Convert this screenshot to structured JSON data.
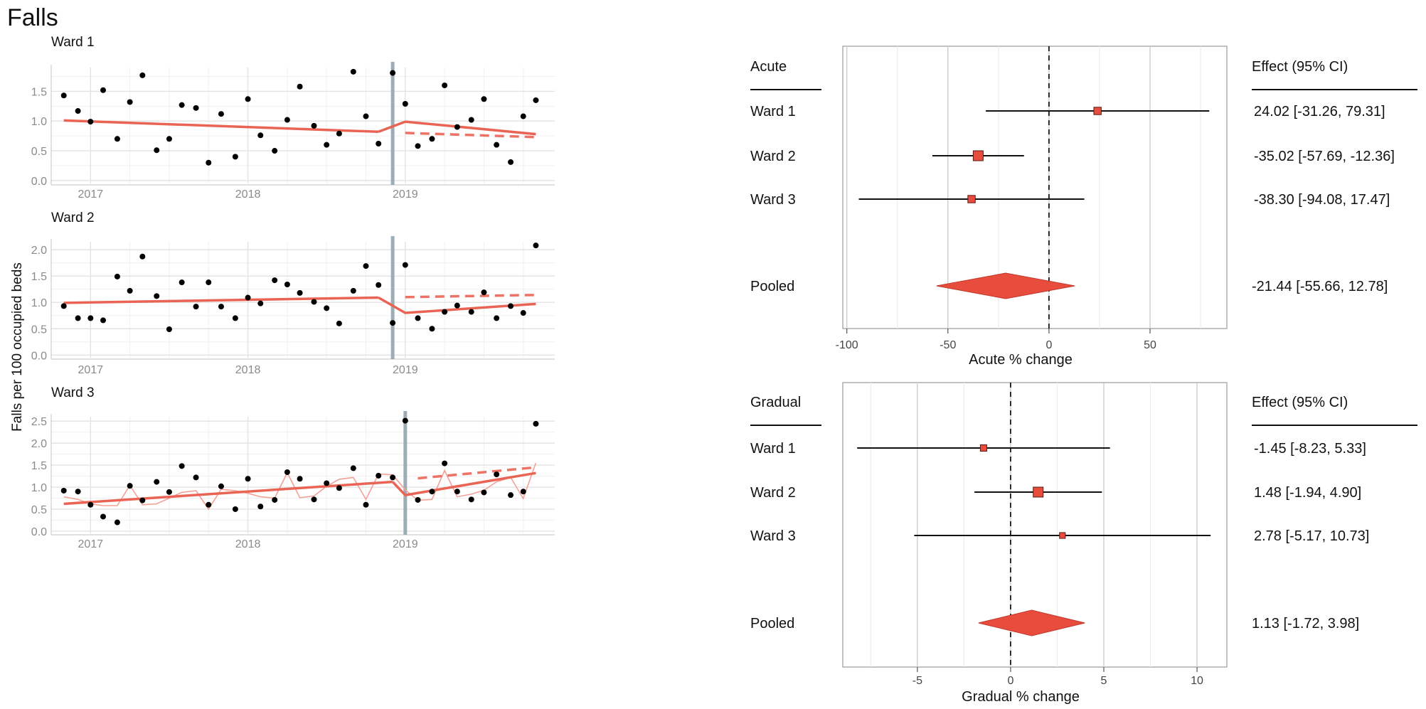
{
  "title": "Falls",
  "colors": {
    "trend": "#ea6455",
    "marker": "#e74c3c",
    "intervention": "#9eadb5",
    "grid": "#e3e3e3",
    "axis_text": "#8a8a8a"
  },
  "chart_data": [
    {
      "type": "scatter",
      "title": "Ward 1",
      "ylabel": "Falls per 100 occupied beds",
      "xlim": [
        2016.75,
        2019.95
      ],
      "ylim": [
        -0.05,
        1.9
      ],
      "x_ticks": [
        2017,
        2018,
        2019
      ],
      "x_tick_labels": [
        "2017",
        "2018",
        "2019"
      ],
      "y_ticks": [
        0.0,
        0.5,
        1.0,
        1.5
      ],
      "y_tick_labels": [
        "0.0",
        "0.5",
        "1.0",
        "1.5"
      ],
      "intervention_x": 2018.92,
      "points": [
        [
          2016.83,
          1.43
        ],
        [
          2016.92,
          1.17
        ],
        [
          2017.0,
          0.99
        ],
        [
          2017.08,
          1.52
        ],
        [
          2017.17,
          0.7
        ],
        [
          2017.25,
          1.32
        ],
        [
          2017.33,
          1.77
        ],
        [
          2017.42,
          0.51
        ],
        [
          2017.5,
          0.7
        ],
        [
          2017.58,
          1.27
        ],
        [
          2017.67,
          1.22
        ],
        [
          2017.75,
          0.3
        ],
        [
          2017.83,
          1.12
        ],
        [
          2017.92,
          0.4
        ],
        [
          2018.0,
          1.37
        ],
        [
          2018.08,
          0.76
        ],
        [
          2018.17,
          0.5
        ],
        [
          2018.25,
          1.02
        ],
        [
          2018.33,
          1.58
        ],
        [
          2018.42,
          0.92
        ],
        [
          2018.5,
          0.6
        ],
        [
          2018.58,
          0.79
        ],
        [
          2018.67,
          1.83
        ],
        [
          2018.75,
          1.08
        ],
        [
          2018.83,
          0.62
        ],
        [
          2018.92,
          1.81
        ],
        [
          2019.0,
          1.29
        ],
        [
          2019.08,
          0.58
        ],
        [
          2019.17,
          0.7
        ],
        [
          2019.25,
          1.6
        ],
        [
          2019.33,
          0.9
        ],
        [
          2019.42,
          1.02
        ],
        [
          2019.5,
          1.37
        ],
        [
          2019.58,
          0.6
        ],
        [
          2019.67,
          0.31
        ],
        [
          2019.75,
          1.08
        ],
        [
          2019.83,
          1.35
        ]
      ],
      "fitted_pre": [
        [
          2016.83,
          1.01
        ],
        [
          2018.83,
          0.82
        ]
      ],
      "fitted_post": [
        [
          2018.83,
          0.82
        ],
        [
          2019.0,
          0.99
        ],
        [
          2019.83,
          0.78
        ]
      ],
      "counterfactual": [
        [
          2019.0,
          0.8
        ],
        [
          2019.83,
          0.73
        ]
      ]
    },
    {
      "type": "scatter",
      "title": "Ward 2",
      "xlim": [
        2016.75,
        2019.95
      ],
      "ylim": [
        -0.05,
        2.15
      ],
      "x_ticks": [
        2017,
        2018,
        2019
      ],
      "x_tick_labels": [
        "2017",
        "2018",
        "2019"
      ],
      "y_ticks": [
        0.0,
        0.5,
        1.0,
        1.5,
        2.0
      ],
      "y_tick_labels": [
        "0.0",
        "0.5",
        "1.0",
        "1.5",
        "2.0"
      ],
      "intervention_x": 2018.92,
      "points": [
        [
          2016.83,
          0.93
        ],
        [
          2016.92,
          0.7
        ],
        [
          2017.0,
          0.7
        ],
        [
          2017.08,
          0.66
        ],
        [
          2017.17,
          1.49
        ],
        [
          2017.25,
          1.22
        ],
        [
          2017.33,
          1.87
        ],
        [
          2017.42,
          1.12
        ],
        [
          2017.5,
          0.49
        ],
        [
          2017.58,
          1.38
        ],
        [
          2017.67,
          0.92
        ],
        [
          2017.75,
          1.38
        ],
        [
          2017.83,
          0.92
        ],
        [
          2017.92,
          0.7
        ],
        [
          2018.0,
          1.09
        ],
        [
          2018.08,
          0.98
        ],
        [
          2018.17,
          1.42
        ],
        [
          2018.25,
          1.34
        ],
        [
          2018.33,
          1.18
        ],
        [
          2018.42,
          1.01
        ],
        [
          2018.5,
          0.89
        ],
        [
          2018.58,
          0.6
        ],
        [
          2018.67,
          1.22
        ],
        [
          2018.75,
          1.69
        ],
        [
          2018.83,
          1.33
        ],
        [
          2018.92,
          0.61
        ],
        [
          2019.0,
          1.71
        ],
        [
          2019.08,
          0.7
        ],
        [
          2019.17,
          0.5
        ],
        [
          2019.25,
          0.82
        ],
        [
          2019.33,
          0.94
        ],
        [
          2019.42,
          0.82
        ],
        [
          2019.5,
          1.19
        ],
        [
          2019.58,
          0.7
        ],
        [
          2019.67,
          0.93
        ],
        [
          2019.75,
          0.8
        ],
        [
          2019.83,
          2.08
        ]
      ],
      "fitted_pre": [
        [
          2016.83,
          0.99
        ],
        [
          2018.83,
          1.09
        ]
      ],
      "fitted_post": [
        [
          2018.83,
          1.09
        ],
        [
          2019.0,
          0.8
        ],
        [
          2019.83,
          0.97
        ]
      ],
      "counterfactual": [
        [
          2019.0,
          1.1
        ],
        [
          2019.83,
          1.14
        ]
      ]
    },
    {
      "type": "scatter",
      "title": "Ward 3",
      "xlim": [
        2016.75,
        2019.95
      ],
      "ylim": [
        -0.05,
        2.6
      ],
      "x_ticks": [
        2017,
        2018,
        2019
      ],
      "x_tick_labels": [
        "2017",
        "2018",
        "2019"
      ],
      "y_ticks": [
        0.0,
        0.5,
        1.0,
        1.5,
        2.0,
        2.5
      ],
      "y_tick_labels": [
        "0.0",
        "0.5",
        "1.0",
        "1.5",
        "2.0",
        "2.5"
      ],
      "intervention_x": 2019.0,
      "points": [
        [
          2016.83,
          0.92
        ],
        [
          2016.92,
          0.9
        ],
        [
          2017.0,
          0.6
        ],
        [
          2017.08,
          0.33
        ],
        [
          2017.17,
          0.2
        ],
        [
          2017.25,
          1.03
        ],
        [
          2017.33,
          0.7
        ],
        [
          2017.42,
          1.12
        ],
        [
          2017.5,
          0.89
        ],
        [
          2017.58,
          1.48
        ],
        [
          2017.67,
          1.22
        ],
        [
          2017.75,
          0.6
        ],
        [
          2017.83,
          1.02
        ],
        [
          2017.92,
          0.5
        ],
        [
          2018.0,
          1.19
        ],
        [
          2018.08,
          0.56
        ],
        [
          2018.17,
          0.71
        ],
        [
          2018.25,
          1.34
        ],
        [
          2018.33,
          1.19
        ],
        [
          2018.42,
          0.72
        ],
        [
          2018.5,
          1.09
        ],
        [
          2018.58,
          0.98
        ],
        [
          2018.67,
          1.43
        ],
        [
          2018.75,
          0.6
        ],
        [
          2018.83,
          1.26
        ],
        [
          2018.92,
          1.22
        ],
        [
          2019.0,
          2.51
        ],
        [
          2019.08,
          0.71
        ],
        [
          2019.17,
          0.9
        ],
        [
          2019.25,
          1.54
        ],
        [
          2019.33,
          0.9
        ],
        [
          2019.42,
          0.72
        ],
        [
          2019.5,
          0.88
        ],
        [
          2019.58,
          1.29
        ],
        [
          2019.67,
          0.82
        ],
        [
          2019.75,
          0.9
        ],
        [
          2019.83,
          2.44
        ]
      ],
      "fitted_pre": [
        [
          2016.83,
          0.62
        ],
        [
          2018.92,
          1.12
        ]
      ],
      "fitted_post": [
        [
          2018.92,
          1.12
        ],
        [
          2019.0,
          0.82
        ],
        [
          2019.83,
          1.32
        ]
      ],
      "counterfactual": [
        [
          2019.08,
          1.2
        ],
        [
          2019.83,
          1.45
        ]
      ],
      "smoothed": [
        [
          2016.83,
          0.78
        ],
        [
          2016.92,
          0.72
        ],
        [
          2017.0,
          0.62
        ],
        [
          2017.08,
          0.58
        ],
        [
          2017.17,
          0.58
        ],
        [
          2017.25,
          1.04
        ],
        [
          2017.33,
          0.6
        ],
        [
          2017.42,
          0.62
        ],
        [
          2017.5,
          0.75
        ],
        [
          2017.58,
          0.88
        ],
        [
          2017.67,
          0.92
        ],
        [
          2017.75,
          0.5
        ],
        [
          2017.83,
          0.95
        ],
        [
          2017.92,
          0.92
        ],
        [
          2018.0,
          0.86
        ],
        [
          2018.08,
          0.78
        ],
        [
          2018.17,
          0.75
        ],
        [
          2018.25,
          1.33
        ],
        [
          2018.33,
          0.76
        ],
        [
          2018.42,
          0.8
        ],
        [
          2018.5,
          1.02
        ],
        [
          2018.58,
          1.18
        ],
        [
          2018.67,
          1.22
        ],
        [
          2018.75,
          0.72
        ],
        [
          2018.83,
          1.3
        ],
        [
          2018.92,
          1.28
        ],
        [
          2019.0,
          0.94
        ],
        [
          2019.08,
          0.7
        ],
        [
          2019.17,
          0.72
        ],
        [
          2019.25,
          1.38
        ],
        [
          2019.33,
          0.78
        ],
        [
          2019.42,
          0.84
        ],
        [
          2019.5,
          0.93
        ],
        [
          2019.58,
          1.12
        ],
        [
          2019.67,
          1.22
        ],
        [
          2019.75,
          0.74
        ],
        [
          2019.83,
          1.55
        ]
      ]
    },
    {
      "type": "forest",
      "header_label": "Acute",
      "effect_header": "Effect (95% CI)",
      "xlabel": "Acute % change",
      "xlim": [
        -102,
        88
      ],
      "x_ticks": [
        -100,
        -50,
        0,
        50
      ],
      "x_tick_labels": [
        "-100",
        "-50",
        "0",
        "50"
      ],
      "minor_ticks": [
        -75,
        -25,
        25,
        75
      ],
      "rows": [
        {
          "label": "Ward 1",
          "estimate": 24.02,
          "lower": -31.26,
          "upper": 79.31,
          "weight": 0.6,
          "effect_text": "24.02 [-31.26,  79.31]"
        },
        {
          "label": "Ward 2",
          "estimate": -35.02,
          "lower": -57.69,
          "upper": -12.36,
          "weight": 1.0,
          "effect_text": "-35.02 [-57.69, -12.36]"
        },
        {
          "label": "Ward 3",
          "estimate": -38.3,
          "lower": -94.08,
          "upper": 17.47,
          "weight": 0.6,
          "effect_text": "-38.30 [-94.08,  17.47]"
        }
      ],
      "pooled": {
        "label": "Pooled",
        "estimate": -21.44,
        "lower": -55.66,
        "upper": 12.78,
        "effect_text": "-21.44 [-55.66,  12.78]"
      }
    },
    {
      "type": "forest",
      "header_label": "Gradual",
      "effect_header": "Effect (95% CI)",
      "xlabel": "Gradual % change",
      "xlim": [
        -9.0,
        11.6
      ],
      "x_ticks": [
        -5,
        0,
        5,
        10
      ],
      "x_tick_labels": [
        "-5",
        "0",
        "5",
        "10"
      ],
      "minor_ticks": [
        -7.5,
        -2.5,
        2.5,
        7.5
      ],
      "rows": [
        {
          "label": "Ward 1",
          "estimate": -1.45,
          "lower": -8.23,
          "upper": 5.33,
          "weight": 0.45,
          "effect_text": "-1.45 [-8.23,  5.33]"
        },
        {
          "label": "Ward 2",
          "estimate": 1.48,
          "lower": -1.94,
          "upper": 4.9,
          "weight": 1.0,
          "effect_text": "1.48 [-1.94,  4.90]"
        },
        {
          "label": "Ward 3",
          "estimate": 2.78,
          "lower": -5.17,
          "upper": 10.73,
          "weight": 0.35,
          "effect_text": "2.78 [-5.17, 10.73]"
        }
      ],
      "pooled": {
        "label": "Pooled",
        "estimate": 1.13,
        "lower": -1.72,
        "upper": 3.98,
        "effect_text": "1.13 [-1.72,  3.98]"
      }
    }
  ]
}
